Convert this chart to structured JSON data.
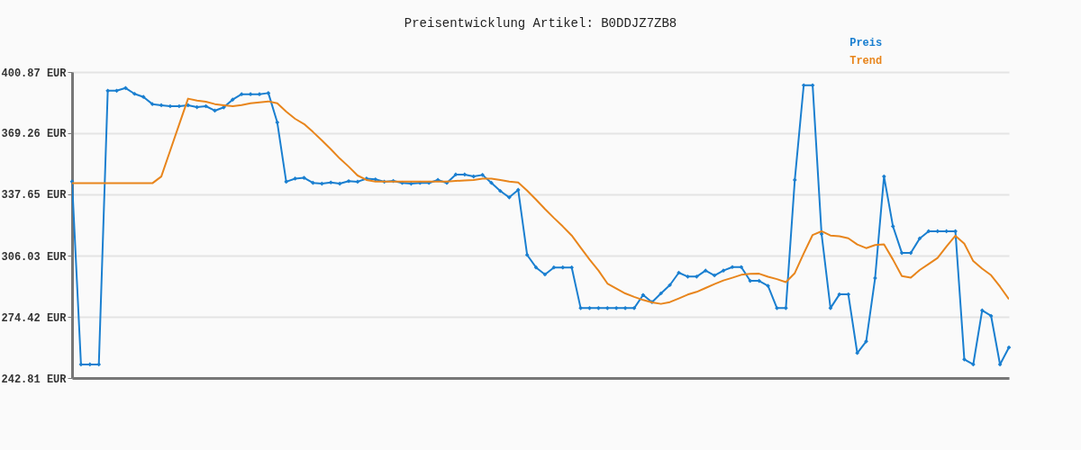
{
  "chart_data": {
    "type": "line",
    "title": "Preisentwicklung Artikel: B0DDJZ7ZB8",
    "categories": [
      null,
      null,
      null,
      null,
      null,
      null,
      null,
      null,
      null,
      null,
      null,
      null,
      null,
      null,
      null,
      null,
      null,
      null,
      null,
      null,
      null,
      null,
      null,
      null,
      null,
      null,
      null,
      null,
      null,
      null,
      null,
      null,
      null,
      null,
      null,
      null,
      null,
      null,
      null,
      null,
      null,
      null,
      null,
      null,
      null,
      null,
      null,
      null,
      null,
      null,
      null,
      null,
      null,
      null,
      null,
      null,
      null,
      null,
      null,
      null,
      null,
      null,
      null,
      null,
      null,
      null,
      null,
      null,
      null,
      null,
      null,
      null,
      null,
      null,
      null,
      null,
      null,
      null,
      null,
      null,
      null,
      null,
      null,
      null,
      null,
      null,
      null,
      null,
      null,
      null,
      null,
      null,
      null,
      null,
      null,
      null,
      null,
      null,
      null,
      null,
      null,
      null,
      null,
      null,
      null,
      null
    ],
    "series": [
      {
        "name": "Preis",
        "color": "#1a7fd0",
        "marker": "diamond",
        "values": [
          344.3,
          249.8,
          249.8,
          249.8,
          391.2,
          391.2,
          392.6,
          389.6,
          388.0,
          384.3,
          383.7,
          383.2,
          383.2,
          383.7,
          382.7,
          383.2,
          380.9,
          382.6,
          386.6,
          389.4,
          389.4,
          389.4,
          390.0,
          374.8,
          344.2,
          345.8,
          346.2,
          343.6,
          343.2,
          343.8,
          343.2,
          344.5,
          344.2,
          345.8,
          345.4,
          344.2,
          344.6,
          343.6,
          343.2,
          343.6,
          343.6,
          345.1,
          343.6,
          347.9,
          347.9,
          346.9,
          347.7,
          343.6,
          339.4,
          336.1,
          340.0,
          306.4,
          299.9,
          296.3,
          299.9,
          299.9,
          299.9,
          278.9,
          278.9,
          278.9,
          278.9,
          278.9,
          278.9,
          278.9,
          285.7,
          282.0,
          286.5,
          290.8,
          297.2,
          295.2,
          295.2,
          298.3,
          295.8,
          298.3,
          300.1,
          300.1,
          293.0,
          293.0,
          290.4,
          278.9,
          278.9,
          345.1,
          394.0,
          394.0,
          317.2,
          278.9,
          286.0,
          286.0,
          255.7,
          261.7,
          294.4,
          346.9,
          321.2,
          307.4,
          307.4,
          314.9,
          318.6,
          318.6,
          318.6,
          318.6,
          252.4,
          249.8,
          277.7,
          274.9,
          249.8,
          258.6
        ]
      },
      {
        "name": "Trend",
        "color": "#e8851c",
        "marker": "none",
        "values": [
          343.4,
          343.4,
          343.4,
          343.4,
          343.4,
          343.4,
          343.4,
          343.4,
          343.4,
          343.4,
          346.9,
          360.3,
          373.7,
          387.1,
          386.1,
          385.5,
          384.3,
          383.7,
          383.2,
          383.8,
          384.7,
          385.2,
          385.7,
          384.7,
          380.4,
          376.7,
          374.0,
          369.9,
          365.5,
          361.0,
          356.2,
          352.0,
          347.4,
          345.1,
          344.3,
          344.3,
          344.3,
          344.3,
          344.3,
          344.3,
          344.3,
          344.3,
          344.3,
          344.6,
          344.8,
          345.1,
          345.8,
          345.8,
          345.1,
          344.3,
          343.8,
          339.6,
          335.0,
          330.1,
          325.5,
          321.1,
          316.4,
          310.2,
          304.0,
          298.3,
          291.6,
          289.0,
          286.5,
          284.7,
          283.1,
          281.9,
          281.1,
          282.0,
          283.9,
          285.9,
          287.3,
          289.3,
          291.3,
          293.2,
          294.6,
          296.1,
          296.6,
          296.7,
          295.1,
          293.9,
          292.3,
          297.0,
          307.1,
          316.7,
          318.6,
          316.4,
          316.0,
          315.0,
          311.8,
          309.9,
          311.5,
          311.8,
          304.0,
          295.5,
          294.6,
          298.6,
          301.7,
          304.8,
          310.7,
          316.3,
          312.2,
          303.2,
          299.3,
          295.9,
          290.0,
          283.5
        ]
      }
    ],
    "ylim": [
      242.81,
      400.87
    ],
    "yticks": [
      {
        "value": 242.81,
        "label": "242.81 EUR"
      },
      {
        "value": 274.42,
        "label": "274.42 EUR"
      },
      {
        "value": 306.03,
        "label": "306.03 EUR"
      },
      {
        "value": 337.65,
        "label": "337.65 EUR"
      },
      {
        "value": 369.26,
        "label": "369.26 EUR"
      },
      {
        "value": 400.87,
        "label": "400.87 EUR"
      }
    ],
    "grid": "y",
    "legend": "top right",
    "tick_labels": "y",
    "line_style": "solid"
  }
}
